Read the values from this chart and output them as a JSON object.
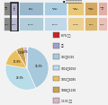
{
  "title": "■ 授業時数済み授業日数合計",
  "col_headers": [
    "870\n以下",
    "同\n上",
    "901~\n1015",
    "1016~\n1050",
    "1051~\n1085",
    "1086~\n1130",
    "1131\n以上"
  ],
  "col_values_str": [
    "0.3%",
    "0.3%",
    "36.3%",
    "29.3%",
    "11.8%",
    "5.2%",
    "2.0%"
  ],
  "col_values": [
    0.3,
    0.3,
    36.3,
    29.3,
    11.8,
    5.2,
    2.0
  ],
  "col_widths_rel": [
    0.6,
    0.6,
    2.0,
    1.8,
    1.4,
    1.0,
    0.8
  ],
  "col_colors_header": [
    "#888888",
    "#b0b0c8",
    "#9ab8cc",
    "#aacce0",
    "#e8c878",
    "#d4a860",
    "#e0b0a8"
  ],
  "col_colors_value": [
    "#888888",
    "#b8b8d0",
    "#b0ccd8",
    "#c0d8e8",
    "#ecd090",
    "#dab870",
    "#e8c0b8"
  ],
  "highlight_col": 1,
  "pie_values": [
    0.3,
    0.3,
    36.3,
    29.3,
    11.8,
    5.2,
    2.0
  ],
  "pie_colors": [
    "#cc2222",
    "#a0a0cc",
    "#a8c8dc",
    "#b8dce8",
    "#e8c060",
    "#c8a050",
    "#d4b8c8"
  ],
  "pie_labels_show": [
    false,
    false,
    false,
    true,
    true,
    true,
    true
  ],
  "pie_label_vals": [
    "",
    "",
    "36.3%",
    "29.3%",
    "11.8%",
    "5.2%",
    "2.0%"
  ],
  "legend_labels": [
    "870 以下",
    "同上",
    "901～1015",
    "1016～1050",
    "1051～1085",
    "1086～1130",
    "1131 以上"
  ],
  "legend_colors": [
    "#cc2222",
    "#a0a0cc",
    "#a8c8dc",
    "#b8dce8",
    "#e8c060",
    "#c8a050",
    "#d4b8c8"
  ],
  "bg_color": "#f2f2f2"
}
